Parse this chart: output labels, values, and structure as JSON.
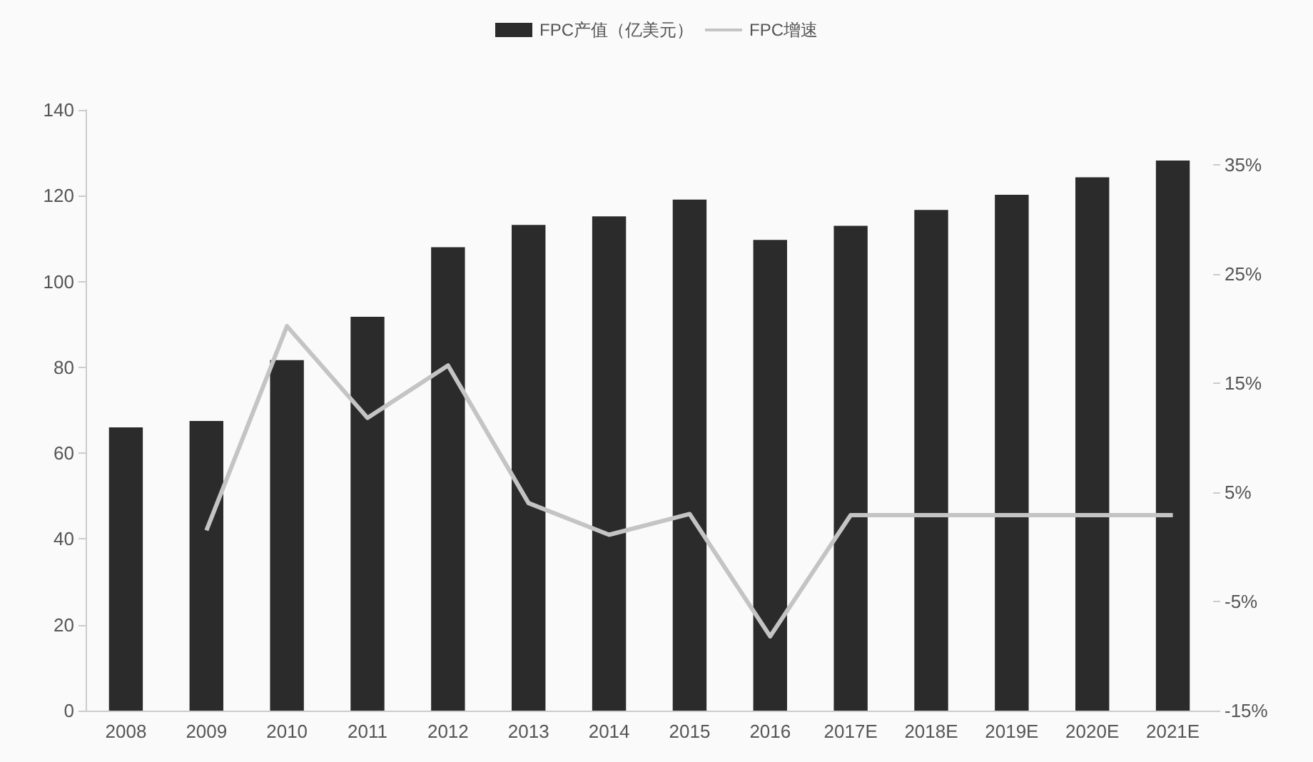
{
  "chart_data": {
    "type": "bar",
    "categories": [
      "2008",
      "2009",
      "2010",
      "2011",
      "2012",
      "2013",
      "2014",
      "2015",
      "2016",
      "2017E",
      "2018E",
      "2019E",
      "2020E",
      "2021E"
    ],
    "series": [
      {
        "name": "FPC产值（亿美元）",
        "color": "#2b2b2b",
        "values": [
          66,
          67.5,
          81.7,
          91.8,
          108,
          113.2,
          115.2,
          119.1,
          109.7,
          113,
          116.7,
          120.2,
          124.3,
          128.2
        ]
      },
      {
        "name": "FPC增速",
        "type": "line",
        "axis": "y2",
        "color": "#c4c4c4",
        "values": [
          null,
          1.5,
          20.2,
          11.8,
          16.6,
          4.0,
          1.1,
          3.0,
          -8.2,
          2.9,
          2.9,
          2.9,
          2.9,
          2.9
        ]
      }
    ],
    "ylim": [
      0,
      140
    ],
    "yticks": [
      0,
      20,
      40,
      60,
      80,
      100,
      120,
      140
    ],
    "y2lim": [
      -15,
      40
    ],
    "y2ticks": [
      {
        "value": -15,
        "label": "-15%"
      },
      {
        "value": -5,
        "label": "-5%"
      },
      {
        "value": 5,
        "label": "5%"
      },
      {
        "value": 15,
        "label": "15%"
      },
      {
        "value": 25,
        "label": "25%"
      },
      {
        "value": 35,
        "label": "35%"
      }
    ],
    "legend": "top",
    "grid": false,
    "marker": "none",
    "line_style": "solid"
  }
}
